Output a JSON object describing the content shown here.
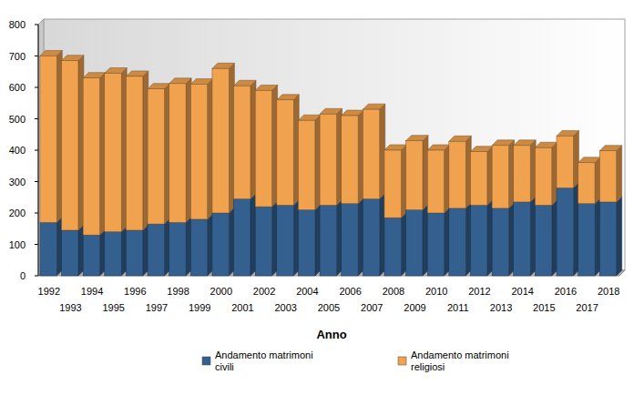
{
  "chart_data": {
    "type": "bar",
    "stacked": true,
    "x_label": "Anno",
    "categories": [
      "1992",
      "1993",
      "1994",
      "1995",
      "1996",
      "1997",
      "1998",
      "1999",
      "2000",
      "2001",
      "2002",
      "2003",
      "2004",
      "2005",
      "2006",
      "2007",
      "2008",
      "2009",
      "2010",
      "2011",
      "2012",
      "2013",
      "2014",
      "2015",
      "2016",
      "2017",
      "2018"
    ],
    "series": [
      {
        "name": "Andamento matrimoni civili",
        "color": "#34608f",
        "values": [
          170,
          145,
          130,
          140,
          145,
          165,
          170,
          180,
          200,
          245,
          220,
          225,
          210,
          225,
          230,
          245,
          185,
          210,
          200,
          215,
          225,
          215,
          235,
          225,
          280,
          230,
          235
        ]
      },
      {
        "name": "Andamento matrimoni religiosi",
        "color": "#f0a24f",
        "values": [
          530,
          540,
          500,
          505,
          490,
          430,
          442,
          430,
          460,
          360,
          370,
          335,
          285,
          290,
          280,
          285,
          215,
          220,
          200,
          213,
          170,
          200,
          180,
          183,
          165,
          130,
          163
        ]
      }
    ],
    "ylim": [
      0,
      800
    ],
    "yticks": [
      0,
      100,
      200,
      300,
      400,
      500,
      600,
      700,
      800
    ],
    "grid": false,
    "legend": "bottom"
  }
}
